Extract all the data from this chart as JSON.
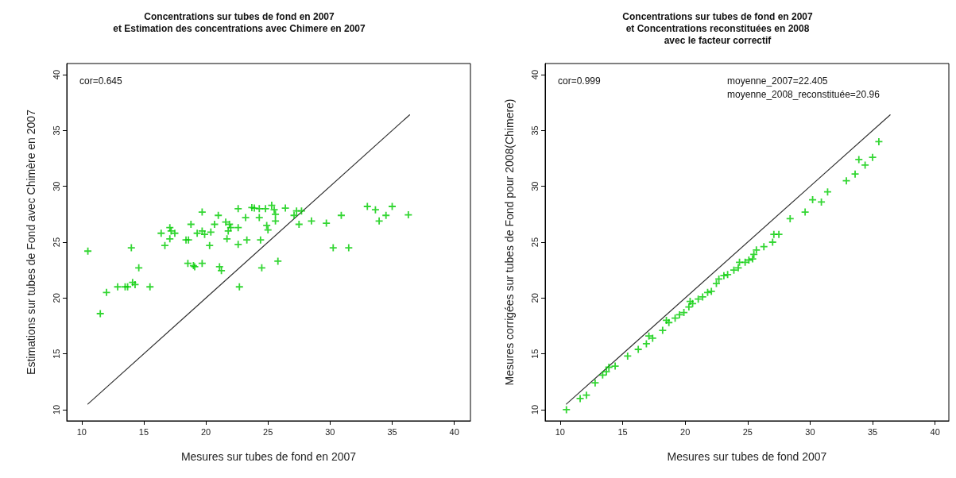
{
  "chart_data": [
    {
      "type": "scatter",
      "title": "Concentrations sur tubes de fond en 2007\net Estimation des concentrations avec Chimere en 2007",
      "xlabel": "Mesures sur tubes de fond en 2007",
      "ylabel": "Estimations sur tubes de Fond avec Chimère en 2007",
      "annotations": [
        "cor=0.645"
      ],
      "xlim": [
        8.8,
        41.3
      ],
      "ylim": [
        9,
        41
      ],
      "xticks": [
        10,
        15,
        20,
        25,
        30,
        35,
        40
      ],
      "yticks": [
        10,
        15,
        20,
        25,
        30,
        35,
        40
      ],
      "grid": false,
      "marker": "cross",
      "series": [
        {
          "color": "#00cc00",
          "x": [
            10.5,
            11.5,
            12.0,
            14.0,
            14.6,
            12.9,
            13.5,
            13.7,
            14.1,
            14.3,
            15.5,
            16.4,
            16.7,
            17.1,
            17.2,
            17.1,
            17.5,
            18.4,
            18.6,
            18.8,
            18.55,
            19.0,
            19.1,
            19.7,
            19.7,
            19.3,
            19.7,
            19.9,
            20.3,
            20.4,
            20.7,
            21.0,
            21.1,
            21.25,
            21.6,
            21.7,
            21.8,
            21.9,
            22.0,
            22.6,
            22.6,
            22.6,
            23.2,
            23.3,
            23.7,
            23.9,
            24.3,
            24.3,
            24.8,
            24.9,
            25.0,
            24.4,
            24.5,
            22.7,
            25.3,
            25.5,
            25.6,
            25.6,
            25.8,
            26.4,
            27.1,
            27.3,
            27.5,
            27.7,
            28.5,
            29.7,
            30.9,
            30.25,
            31.5,
            33.0,
            33.65,
            33.95,
            34.5,
            35.0,
            36.3
          ],
          "values": [
            24.2,
            18.6,
            20.5,
            24.5,
            22.7,
            21.0,
            21.0,
            21.0,
            21.4,
            21.2,
            21.0,
            25.8,
            24.7,
            26.3,
            26.0,
            25.3,
            25.8,
            25.2,
            25.2,
            26.6,
            23.1,
            22.9,
            22.8,
            23.1,
            27.7,
            25.8,
            26.0,
            25.7,
            24.7,
            25.9,
            26.6,
            27.4,
            22.8,
            22.45,
            26.8,
            25.3,
            26.0,
            26.6,
            26.3,
            26.3,
            24.8,
            28.0,
            27.2,
            25.2,
            28.1,
            28.05,
            28.0,
            27.2,
            28.0,
            26.5,
            26.1,
            25.2,
            22.7,
            21.0,
            28.3,
            27.9,
            27.5,
            26.9,
            23.3,
            28.05,
            27.4,
            27.8,
            26.6,
            27.8,
            26.9,
            26.7,
            27.4,
            24.5,
            24.5,
            28.2,
            27.9,
            26.9,
            27.4,
            28.2,
            27.45
          ]
        },
        {
          "type": "line",
          "marker": "none",
          "line_style": "solid",
          "color": "#333333",
          "x": [
            10.5,
            36.4
          ],
          "values": [
            10.5,
            36.4
          ]
        }
      ]
    },
    {
      "type": "scatter",
      "title": "Concentrations sur tubes de fond en 2007\net Concentrations reconstituées en 2008\navec le facteur correctif",
      "xlabel": "Mesures sur tubes de fond 2007",
      "ylabel": "Mesures corrigées sur tubes de Fond pour 2008(Chimere)",
      "annotations": [
        "cor=0.999",
        "moyenne_2007=22.405",
        "moyenne_2008_reconstituée=20.96"
      ],
      "xlim": [
        8.8,
        41.1
      ],
      "ylim": [
        9,
        41
      ],
      "xticks": [
        10,
        15,
        20,
        25,
        30,
        35,
        40
      ],
      "yticks": [
        10,
        15,
        20,
        25,
        30,
        35,
        40
      ],
      "grid": false,
      "marker": "cross",
      "series": [
        {
          "color": "#00cc00",
          "x": [
            10.5,
            11.6,
            12.1,
            12.8,
            13.4,
            13.7,
            13.9,
            14.4,
            15.4,
            16.25,
            16.9,
            17.1,
            17.4,
            18.2,
            18.5,
            18.7,
            19.2,
            19.55,
            19.9,
            20.3,
            20.4,
            20.6,
            21.05,
            21.4,
            21.8,
            22.1,
            22.5,
            22.7,
            23.1,
            23.4,
            23.9,
            24.25,
            24.35,
            24.8,
            25.1,
            25.4,
            25.5,
            25.7,
            26.3,
            27.0,
            27.1,
            27.5,
            28.4,
            29.6,
            30.9,
            30.2,
            31.4,
            32.9,
            33.6,
            34.4,
            33.9,
            35.0,
            35.5
          ],
          "values": [
            10.0,
            11.0,
            11.3,
            12.4,
            13.1,
            13.4,
            13.8,
            13.9,
            14.8,
            15.4,
            15.9,
            16.6,
            16.4,
            17.1,
            18.0,
            17.8,
            18.2,
            18.5,
            18.7,
            19.2,
            19.7,
            19.5,
            19.9,
            20.1,
            20.5,
            20.6,
            21.3,
            21.7,
            22.0,
            22.1,
            22.5,
            22.7,
            23.2,
            23.2,
            23.4,
            23.5,
            23.9,
            24.3,
            24.6,
            25.0,
            25.7,
            25.7,
            27.1,
            27.7,
            28.6,
            28.8,
            29.5,
            30.5,
            31.1,
            31.9,
            32.4,
            32.6,
            34.0
          ]
        },
        {
          "type": "line",
          "marker": "none",
          "line_style": "solid",
          "color": "#333333",
          "x": [
            10.5,
            36.4
          ],
          "values": [
            10.5,
            36.4
          ]
        }
      ]
    }
  ]
}
